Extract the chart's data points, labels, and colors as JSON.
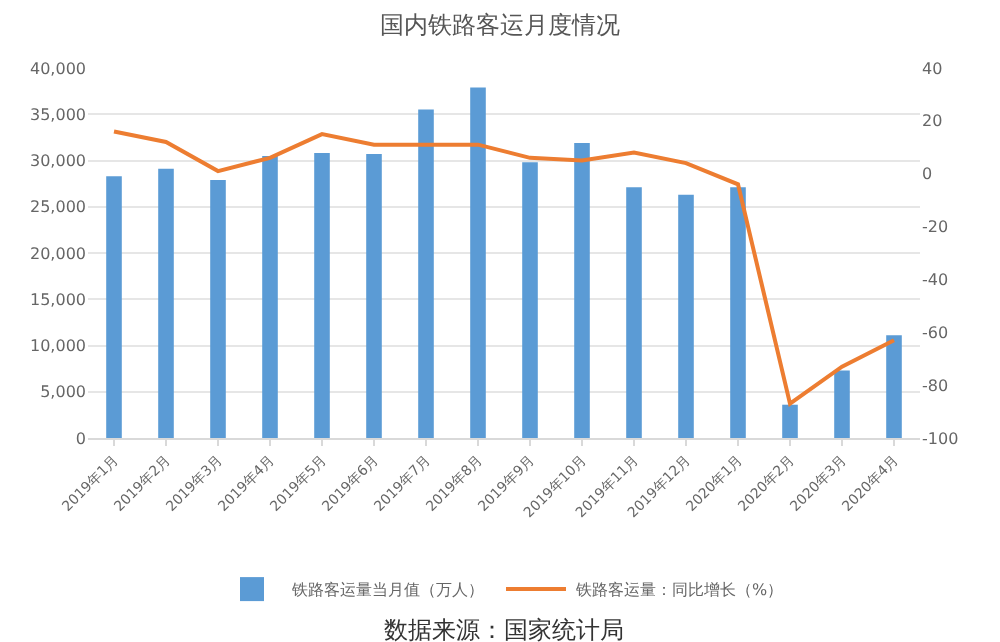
{
  "chart_data": {
    "type": "bar",
    "title": "国内铁路客运月度情况",
    "categories": [
      "2019年1月",
      "2019年2月",
      "2019年3月",
      "2019年4月",
      "2019年5月",
      "2019年6月",
      "2019年7月",
      "2019年8月",
      "2019年9月",
      "2019年10月",
      "2019年11月",
      "2019年12月",
      "2020年1月",
      "2020年2月",
      "2020年3月",
      "2020年4月"
    ],
    "series": [
      {
        "name": "铁路客运量当月值（万人）",
        "color": "#5b9bd5",
        "values": [
          28300,
          29100,
          27900,
          30500,
          30800,
          30700,
          35500,
          37900,
          29800,
          31900,
          27100,
          26300,
          27100,
          3600,
          7300,
          11100
        ]
      },
      {
        "name": "铁路客运量：同比增长（%）",
        "type": "line",
        "axis": "y2",
        "color": "#ed7d31",
        "values": [
          16,
          12,
          1,
          6,
          15,
          11,
          11,
          11,
          6,
          5,
          8,
          4,
          -4,
          -87,
          -73,
          -63
        ]
      }
    ],
    "ylim": [
      0,
      40000
    ],
    "yticks": [
      {
        "value": 0,
        "label": "0"
      },
      {
        "value": 5000,
        "label": "5,000"
      },
      {
        "value": 10000,
        "label": "10,000"
      },
      {
        "value": 15000,
        "label": "15,000"
      },
      {
        "value": 20000,
        "label": "20,000"
      },
      {
        "value": 25000,
        "label": "25,000"
      },
      {
        "value": 30000,
        "label": "30,000"
      },
      {
        "value": 35000,
        "label": "35,000"
      },
      {
        "value": 40000,
        "label": "40,000"
      }
    ],
    "y2lim": [
      -100,
      40
    ],
    "y2ticks": [
      -100,
      -80,
      -60,
      -40,
      -20,
      0,
      20,
      40
    ],
    "grid": "y",
    "legend": "bottom",
    "marker": "none",
    "line_style": "solid",
    "annotations": [
      "数据来源：国家统计局"
    ]
  }
}
